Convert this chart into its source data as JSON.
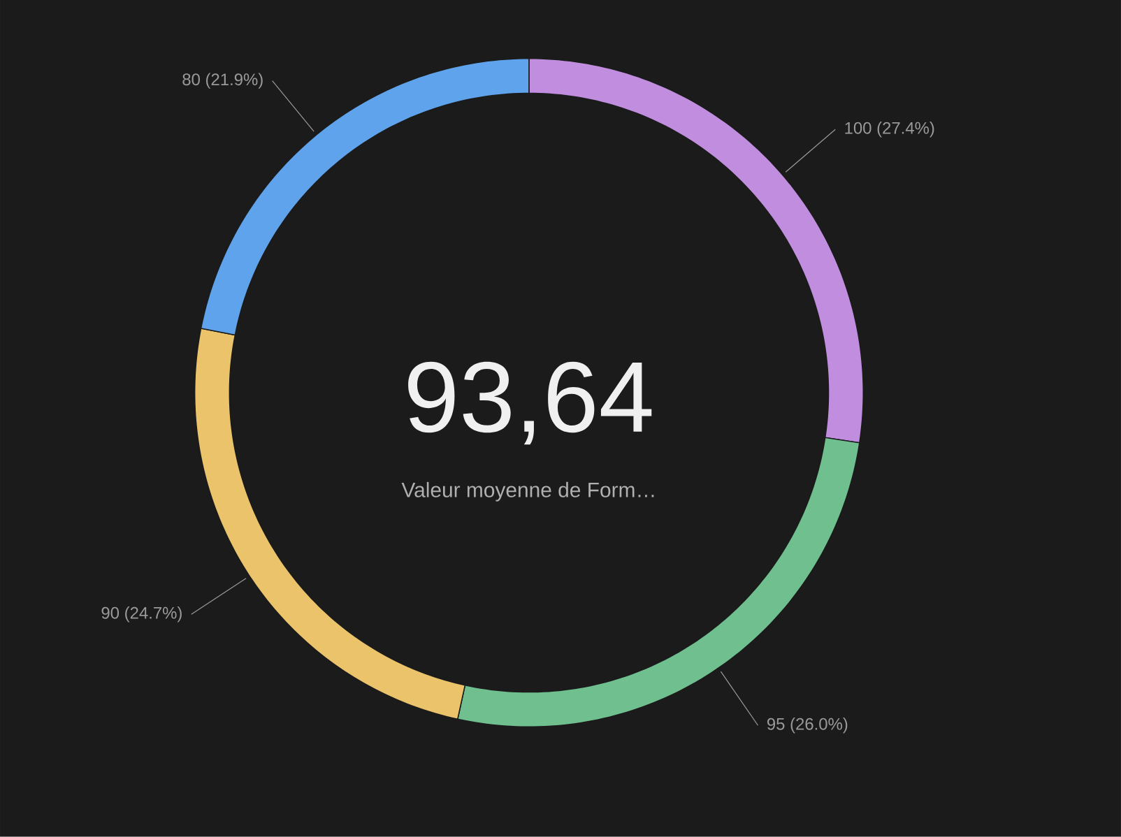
{
  "chart_data": {
    "type": "donut",
    "title": "93,64",
    "subtitle": "Valeur moyenne de Form…",
    "categories": [
      null,
      null,
      null,
      null
    ],
    "values": [
      100,
      95,
      90,
      80
    ],
    "colors": [
      "#c08ddf",
      "#6fbf8f",
      "#eac36a",
      "#5ea3eb"
    ],
    "value_labels": [
      "100 (27.4%)",
      "95 (26.0%)",
      "90 (24.7%)",
      "80 (21.9%)"
    ]
  }
}
